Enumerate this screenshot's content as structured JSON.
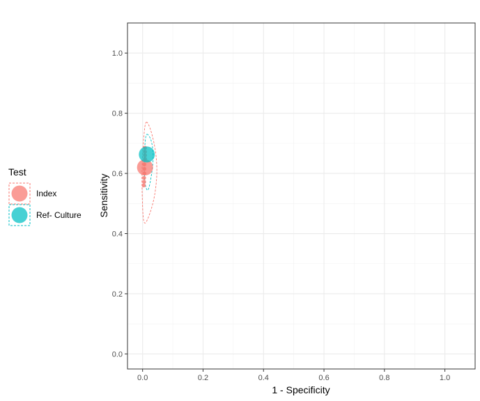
{
  "chart_data": {
    "type": "scatter",
    "xlabel": "1 - Specificity",
    "ylabel": "Sensitivity",
    "xlim": [
      -0.05,
      1.1
    ],
    "ylim": [
      -0.05,
      1.1
    ],
    "x_ticks": [
      "0.0",
      "0.2",
      "0.4",
      "0.6",
      "0.8",
      "1.0"
    ],
    "y_ticks": [
      "0.0",
      "0.2",
      "0.4",
      "0.6",
      "0.8",
      "1.0"
    ],
    "grid": true,
    "legend_title": "Test",
    "legend_position": "left",
    "series": [
      {
        "name": "Index",
        "color": "#F8766D",
        "summary_point": {
          "x": 0.008,
          "y": 0.62
        },
        "study_points": [
          {
            "x": 0.008,
            "y": 0.685
          },
          {
            "x": 0.008,
            "y": 0.672
          },
          {
            "x": 0.008,
            "y": 0.66
          },
          {
            "x": 0.008,
            "y": 0.648
          },
          {
            "x": 0.006,
            "y": 0.63
          },
          {
            "x": 0.006,
            "y": 0.615
          },
          {
            "x": 0.006,
            "y": 0.6
          },
          {
            "x": 0.005,
            "y": 0.585
          },
          {
            "x": 0.005,
            "y": 0.572
          },
          {
            "x": 0.004,
            "y": 0.56
          }
        ],
        "region": [
          {
            "x": 0.012,
            "y": 0.77
          },
          {
            "x": 0.028,
            "y": 0.74
          },
          {
            "x": 0.043,
            "y": 0.67
          },
          {
            "x": 0.047,
            "y": 0.6
          },
          {
            "x": 0.04,
            "y": 0.53
          },
          {
            "x": 0.025,
            "y": 0.47
          },
          {
            "x": 0.008,
            "y": 0.435
          },
          {
            "x": 0.001,
            "y": 0.47
          },
          {
            "x": -0.002,
            "y": 0.6
          },
          {
            "x": 0.004,
            "y": 0.72
          }
        ]
      },
      {
        "name": "Ref- Culture",
        "color": "#00BFC4",
        "summary_point": {
          "x": 0.014,
          "y": 0.663
        },
        "study_points": [],
        "region": [
          {
            "x": 0.014,
            "y": 0.73
          },
          {
            "x": 0.028,
            "y": 0.71
          },
          {
            "x": 0.035,
            "y": 0.66
          },
          {
            "x": 0.03,
            "y": 0.6
          },
          {
            "x": 0.018,
            "y": 0.545
          },
          {
            "x": 0.008,
            "y": 0.57
          },
          {
            "x": 0.005,
            "y": 0.64
          },
          {
            "x": 0.008,
            "y": 0.7
          }
        ]
      }
    ]
  }
}
